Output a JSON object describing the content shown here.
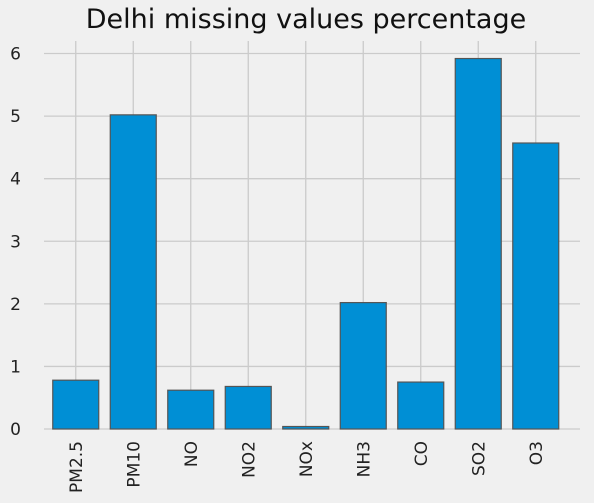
{
  "chart_data": {
    "type": "bar",
    "title": "Delhi missing values percentage",
    "xlabel": "",
    "ylabel": "",
    "categories": [
      "PM2.5",
      "PM10",
      "NO",
      "NO2",
      "NOx",
      "NH3",
      "CO",
      "SO2",
      "O3"
    ],
    "values": [
      0.78,
      5.02,
      0.62,
      0.68,
      0.04,
      2.02,
      0.75,
      5.92,
      4.57
    ],
    "ylim": [
      0,
      6.2
    ],
    "yticks": [
      0,
      1,
      2,
      3,
      4,
      5,
      6
    ],
    "grid": true,
    "legend": "none",
    "bar_color": "#008fd5",
    "bar_edge_color": "#555555",
    "background": "#f0f0f0",
    "grid_color": "#cbcbcb"
  }
}
